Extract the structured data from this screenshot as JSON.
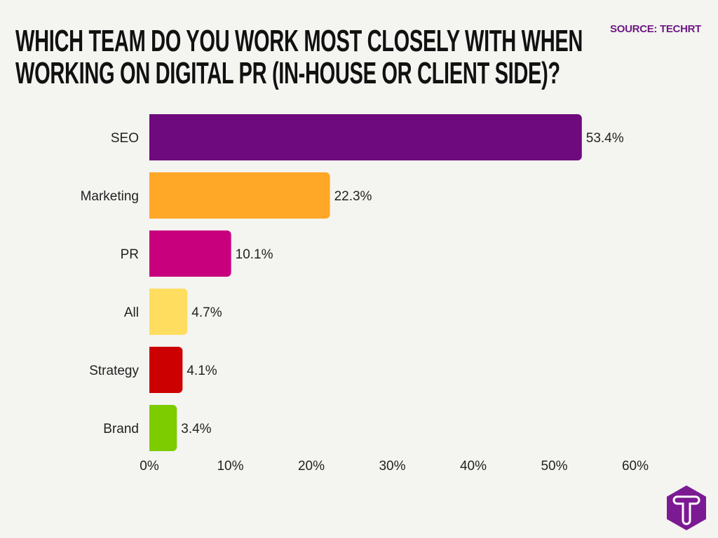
{
  "chart_data": {
    "type": "bar",
    "orientation": "horizontal",
    "title": [
      "Which team do you work most closely with when",
      "working on digital PR (in-house or client side)?"
    ],
    "source": "SOURCE: TECHRT",
    "categories": [
      "SEO",
      "Marketing",
      "PR",
      "All",
      "Strategy",
      "Brand"
    ],
    "values": [
      53.4,
      22.3,
      10.1,
      4.7,
      4.1,
      3.4
    ],
    "value_labels": [
      "53.4%",
      "22.3%",
      "10.1%",
      "4.7%",
      "4.1%",
      "3.4%"
    ],
    "colors": [
      "#6e0a7e",
      "#ffa726",
      "#c8007e",
      "#ffdd5e",
      "#cc0000",
      "#7ccc00"
    ],
    "xlim": [
      0,
      60
    ],
    "xticks": [
      0,
      10,
      20,
      30,
      40,
      50,
      60
    ],
    "xtick_labels": [
      "0%",
      "10%",
      "20%",
      "30%",
      "40%",
      "50%",
      "60%"
    ],
    "xlabel": "",
    "ylabel": "",
    "grid": false,
    "legend": "none"
  },
  "logo": {
    "letter": "T",
    "color": "#7b1a92"
  }
}
